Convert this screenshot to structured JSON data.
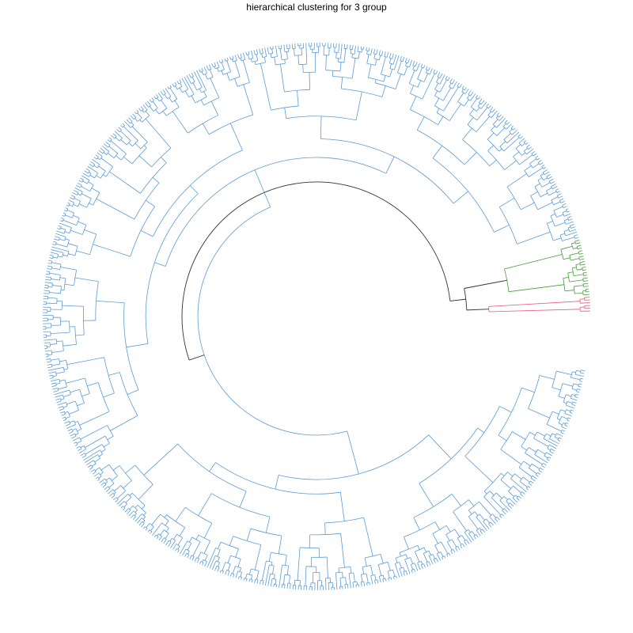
{
  "title": "hierarchical clustering for 3 group",
  "chart_data": {
    "type": "dendrogram",
    "layout": "circular",
    "title": "hierarchical clustering for 3 group",
    "clusters": [
      {
        "id": 1,
        "color": "#5b9bd5",
        "share_of_leaves": 0.955
      },
      {
        "id": 2,
        "color": "#4a9a3c",
        "share_of_leaves": 0.035
      },
      {
        "id": 3,
        "color": "#e05c7a",
        "share_of_leaves": 0.01
      }
    ],
    "root_color": "#333333",
    "leaf_count_estimate": 600
  }
}
